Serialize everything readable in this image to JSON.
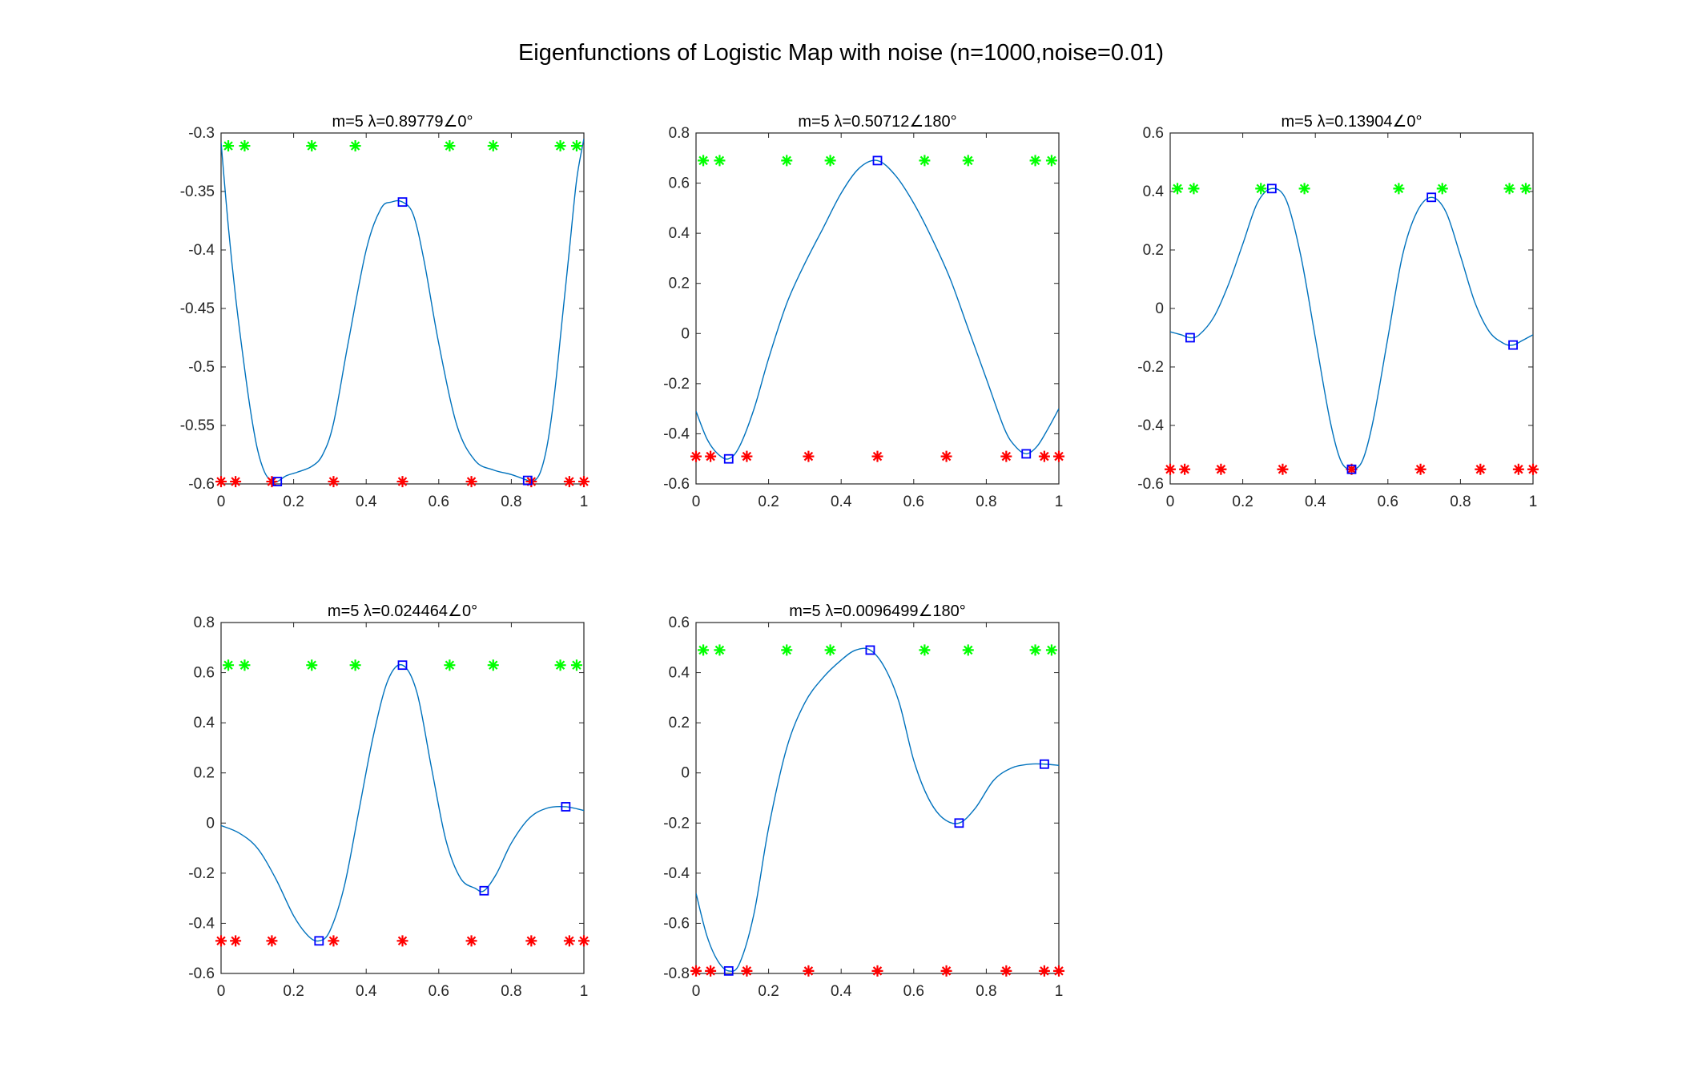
{
  "figure": {
    "title": "Eigenfunctions of Logistic Map with noise (n=1000,noise=0.01)"
  },
  "colors": {
    "curve": "#0072BD",
    "marker_extrema": "#0000FF",
    "marker_green": "#00FF00",
    "marker_red": "#FF0000",
    "axis": "#262626"
  },
  "chart_data": [
    {
      "type": "line",
      "title": "m=5 λ=0.89779∠0°",
      "xlim": [
        0,
        1
      ],
      "ylim": [
        -0.6,
        -0.3
      ],
      "xticks": [
        "0",
        "0.2",
        "0.4",
        "0.6",
        "0.8",
        "1"
      ],
      "yticks": [
        "-0.6",
        "-0.55",
        "-0.5",
        "-0.45",
        "-0.4",
        "-0.35",
        "-0.3"
      ],
      "x": [
        0,
        0.02,
        0.04,
        0.06,
        0.08,
        0.1,
        0.12,
        0.14,
        0.155,
        0.18,
        0.21,
        0.25,
        0.28,
        0.31,
        0.35,
        0.4,
        0.44,
        0.47,
        0.5,
        0.53,
        0.56,
        0.6,
        0.65,
        0.7,
        0.75,
        0.8,
        0.845,
        0.86,
        0.88,
        0.9,
        0.92,
        0.94,
        0.96,
        0.98,
        1.0
      ],
      "y": [
        -0.308,
        -0.38,
        -0.44,
        -0.49,
        -0.535,
        -0.57,
        -0.59,
        -0.598,
        -0.598,
        -0.593,
        -0.59,
        -0.585,
        -0.575,
        -0.548,
        -0.48,
        -0.4,
        -0.365,
        -0.359,
        -0.359,
        -0.37,
        -0.41,
        -0.48,
        -0.55,
        -0.58,
        -0.588,
        -0.592,
        -0.597,
        -0.598,
        -0.59,
        -0.565,
        -0.52,
        -0.46,
        -0.4,
        -0.34,
        -0.305
      ],
      "extrema": [
        [
          0.155,
          -0.598
        ],
        [
          0.5,
          -0.359
        ],
        [
          0.845,
          -0.597
        ]
      ],
      "green_y": -0.311,
      "green_x": [
        0.02,
        0.065,
        0.25,
        0.37,
        0.63,
        0.75,
        0.935,
        0.98
      ],
      "red_y": -0.598,
      "red_x": [
        0.0,
        0.04,
        0.14,
        0.31,
        0.5,
        0.69,
        0.855,
        0.96,
        1.0
      ]
    },
    {
      "type": "line",
      "title": "m=5 λ=0.50712∠180°",
      "xlim": [
        0,
        1
      ],
      "ylim": [
        -0.6,
        0.8
      ],
      "xticks": [
        "0",
        "0.2",
        "0.4",
        "0.6",
        "0.8",
        "1"
      ],
      "yticks": [
        "-0.6",
        "-0.4",
        "-0.2",
        "0",
        "0.2",
        "0.4",
        "0.6",
        "0.8"
      ],
      "x": [
        0,
        0.03,
        0.06,
        0.09,
        0.12,
        0.16,
        0.2,
        0.25,
        0.3,
        0.35,
        0.4,
        0.45,
        0.5,
        0.55,
        0.6,
        0.65,
        0.7,
        0.75,
        0.8,
        0.85,
        0.88,
        0.91,
        0.94,
        0.97,
        1.0
      ],
      "y": [
        -0.31,
        -0.42,
        -0.48,
        -0.5,
        -0.45,
        -0.3,
        -0.1,
        0.12,
        0.28,
        0.42,
        0.56,
        0.66,
        0.69,
        0.63,
        0.52,
        0.38,
        0.22,
        0.02,
        -0.18,
        -0.38,
        -0.45,
        -0.48,
        -0.45,
        -0.38,
        -0.3
      ],
      "extrema": [
        [
          0.09,
          -0.5
        ],
        [
          0.5,
          0.69
        ],
        [
          0.91,
          -0.48
        ]
      ],
      "green_y": 0.69,
      "green_x": [
        0.02,
        0.065,
        0.25,
        0.37,
        0.63,
        0.75,
        0.935,
        0.98
      ],
      "red_y": -0.49,
      "red_x": [
        0.0,
        0.04,
        0.14,
        0.31,
        0.5,
        0.69,
        0.855,
        0.96,
        1.0
      ]
    },
    {
      "type": "line",
      "title": "m=5 λ=0.13904∠0°",
      "xlim": [
        0,
        1
      ],
      "ylim": [
        -0.6,
        0.6
      ],
      "xticks": [
        "0",
        "0.2",
        "0.4",
        "0.6",
        "0.8",
        "1"
      ],
      "yticks": [
        "-0.6",
        "-0.4",
        "-0.2",
        "0",
        "0.2",
        "0.4",
        "0.6"
      ],
      "x": [
        0,
        0.03,
        0.055,
        0.08,
        0.12,
        0.16,
        0.2,
        0.24,
        0.28,
        0.32,
        0.36,
        0.4,
        0.44,
        0.47,
        0.5,
        0.53,
        0.56,
        0.6,
        0.64,
        0.68,
        0.72,
        0.76,
        0.8,
        0.84,
        0.88,
        0.92,
        0.945,
        0.97,
        1.0
      ],
      "y": [
        -0.08,
        -0.09,
        -0.1,
        -0.09,
        -0.03,
        0.08,
        0.22,
        0.36,
        0.41,
        0.37,
        0.18,
        -0.1,
        -0.38,
        -0.52,
        -0.55,
        -0.52,
        -0.38,
        -0.1,
        0.18,
        0.33,
        0.38,
        0.33,
        0.18,
        0.02,
        -0.08,
        -0.12,
        -0.125,
        -0.11,
        -0.09
      ],
      "extrema": [
        [
          0.055,
          -0.1
        ],
        [
          0.28,
          0.41
        ],
        [
          0.5,
          -0.55
        ],
        [
          0.72,
          0.38
        ],
        [
          0.945,
          -0.125
        ]
      ],
      "green_y": 0.41,
      "green_x": [
        0.02,
        0.065,
        0.25,
        0.37,
        0.63,
        0.75,
        0.935,
        0.98
      ],
      "red_y": -0.55,
      "red_x": [
        0.0,
        0.04,
        0.14,
        0.31,
        0.5,
        0.69,
        0.855,
        0.96,
        1.0
      ]
    },
    {
      "type": "line",
      "title": "m=5 λ=0.024464∠0°",
      "xlim": [
        0,
        1
      ],
      "ylim": [
        -0.6,
        0.8
      ],
      "xticks": [
        "0",
        "0.2",
        "0.4",
        "0.6",
        "0.8",
        "1"
      ],
      "yticks": [
        "-0.6",
        "-0.4",
        "-0.2",
        "0",
        "0.2",
        "0.4",
        "0.6",
        "0.8"
      ],
      "x": [
        0,
        0.05,
        0.1,
        0.15,
        0.2,
        0.24,
        0.27,
        0.3,
        0.34,
        0.38,
        0.42,
        0.46,
        0.5,
        0.54,
        0.58,
        0.62,
        0.66,
        0.7,
        0.725,
        0.76,
        0.8,
        0.85,
        0.9,
        0.95,
        1.0
      ],
      "y": [
        -0.01,
        -0.04,
        -0.1,
        -0.22,
        -0.37,
        -0.45,
        -0.47,
        -0.43,
        -0.25,
        0.05,
        0.35,
        0.57,
        0.63,
        0.52,
        0.22,
        -0.07,
        -0.22,
        -0.26,
        -0.27,
        -0.2,
        -0.08,
        0.02,
        0.06,
        0.065,
        0.05
      ],
      "extrema": [
        [
          0.27,
          -0.47
        ],
        [
          0.5,
          0.63
        ],
        [
          0.725,
          -0.27
        ],
        [
          0.95,
          0.065
        ]
      ],
      "green_y": 0.63,
      "green_x": [
        0.02,
        0.065,
        0.25,
        0.37,
        0.63,
        0.75,
        0.935,
        0.98
      ],
      "red_y": -0.47,
      "red_x": [
        0.0,
        0.04,
        0.14,
        0.31,
        0.5,
        0.69,
        0.855,
        0.96,
        1.0
      ]
    },
    {
      "type": "line",
      "title": "m=5 λ=0.0096499∠180°",
      "xlim": [
        0,
        1
      ],
      "ylim": [
        -0.8,
        0.6
      ],
      "xticks": [
        "0",
        "0.2",
        "0.4",
        "0.6",
        "0.8",
        "1"
      ],
      "yticks": [
        "-0.8",
        "-0.6",
        "-0.4",
        "-0.2",
        "0",
        "0.2",
        "0.4",
        "0.6"
      ],
      "x": [
        0,
        0.03,
        0.06,
        0.09,
        0.12,
        0.16,
        0.2,
        0.25,
        0.3,
        0.35,
        0.4,
        0.44,
        0.48,
        0.52,
        0.56,
        0.6,
        0.64,
        0.68,
        0.725,
        0.77,
        0.82,
        0.87,
        0.92,
        0.96,
        1.0
      ],
      "y": [
        -0.48,
        -0.65,
        -0.75,
        -0.79,
        -0.76,
        -0.56,
        -0.22,
        0.1,
        0.28,
        0.38,
        0.45,
        0.49,
        0.49,
        0.42,
        0.28,
        0.05,
        -0.1,
        -0.18,
        -0.2,
        -0.14,
        -0.03,
        0.02,
        0.035,
        0.035,
        0.03
      ],
      "extrema": [
        [
          0.09,
          -0.79
        ],
        [
          0.48,
          0.49
        ],
        [
          0.725,
          -0.2
        ],
        [
          0.96,
          0.035
        ]
      ],
      "green_y": 0.49,
      "green_x": [
        0.02,
        0.065,
        0.25,
        0.37,
        0.63,
        0.75,
        0.935,
        0.98
      ],
      "red_y": -0.79,
      "red_x": [
        0.0,
        0.04,
        0.14,
        0.31,
        0.5,
        0.69,
        0.855,
        0.96,
        1.0
      ]
    }
  ]
}
